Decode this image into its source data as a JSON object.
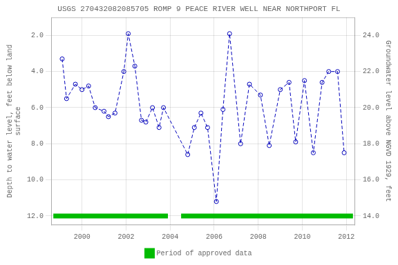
{
  "chart_data": {
    "type": "line",
    "title": "USGS 270432082085705 ROMP 9 PEACE RIVER WELL NEAR NORTHPORT FL",
    "ylabel": "Depth to water level, feet below land\nsurface",
    "y2label": "Groundwater level above NGVD 1929, feet",
    "xlim": [
      1998.6,
      2012.4
    ],
    "xticks": [
      2000,
      2002,
      2004,
      2006,
      2008,
      2010,
      2012
    ],
    "ylim": [
      12.5,
      1.0
    ],
    "yticks": [
      {
        "value": 2.0,
        "label": "2.0"
      },
      {
        "value": 4.0,
        "label": "4.0"
      },
      {
        "value": 6.0,
        "label": "6.0"
      },
      {
        "value": 8.0,
        "label": "8.0"
      },
      {
        "value": 10.0,
        "label": "10.0"
      },
      {
        "value": 12.0,
        "label": "12.0"
      }
    ],
    "y2lim": [
      13.5,
      25.0
    ],
    "y2ticks": [
      {
        "value": 14.0,
        "label": "14.0"
      },
      {
        "value": 16.0,
        "label": "16.0"
      },
      {
        "value": 18.0,
        "label": "18.0"
      },
      {
        "value": 20.0,
        "label": "20.0"
      },
      {
        "value": 22.0,
        "label": "22.0"
      },
      {
        "value": 24.0,
        "label": "24.0"
      }
    ],
    "grid": true,
    "legend": "bottom",
    "x": [
      1999.1,
      1999.3,
      1999.7,
      2000.0,
      2000.3,
      2000.6,
      2001.0,
      2001.2,
      2001.5,
      2001.9,
      2002.1,
      2002.4,
      2002.7,
      2002.9,
      2003.2,
      2003.5,
      2003.7,
      2004.8,
      2005.1,
      2005.4,
      2005.7,
      2006.1,
      2006.4,
      2006.7,
      2007.2,
      2007.6,
      2008.1,
      2008.5,
      2009.0,
      2009.4,
      2009.7,
      2010.1,
      2010.5,
      2010.9,
      2011.2,
      2011.6,
      2011.9
    ],
    "series": [
      {
        "values": [
          3.3,
          5.5,
          4.7,
          5.0,
          4.8,
          6.0,
          6.2,
          6.5,
          6.3,
          4.0,
          1.9,
          3.7,
          6.7,
          6.8,
          6.0,
          7.1,
          6.0,
          8.6,
          7.1,
          6.3,
          7.1,
          11.2,
          6.1,
          1.9,
          8.0,
          4.7,
          5.3,
          8.1,
          5.0,
          4.6,
          7.9,
          4.5,
          8.5,
          4.6,
          4.0,
          4.0,
          8.5
        ],
        "color": "#0000bb",
        "line_style": "dashed",
        "marker": "circle"
      }
    ],
    "periods": {
      "name": "Period of approved data",
      "color": "#00bb00",
      "y": 12.0,
      "ranges": [
        [
          1998.7,
          2003.9
        ],
        [
          2004.5,
          2012.3
        ]
      ]
    }
  }
}
